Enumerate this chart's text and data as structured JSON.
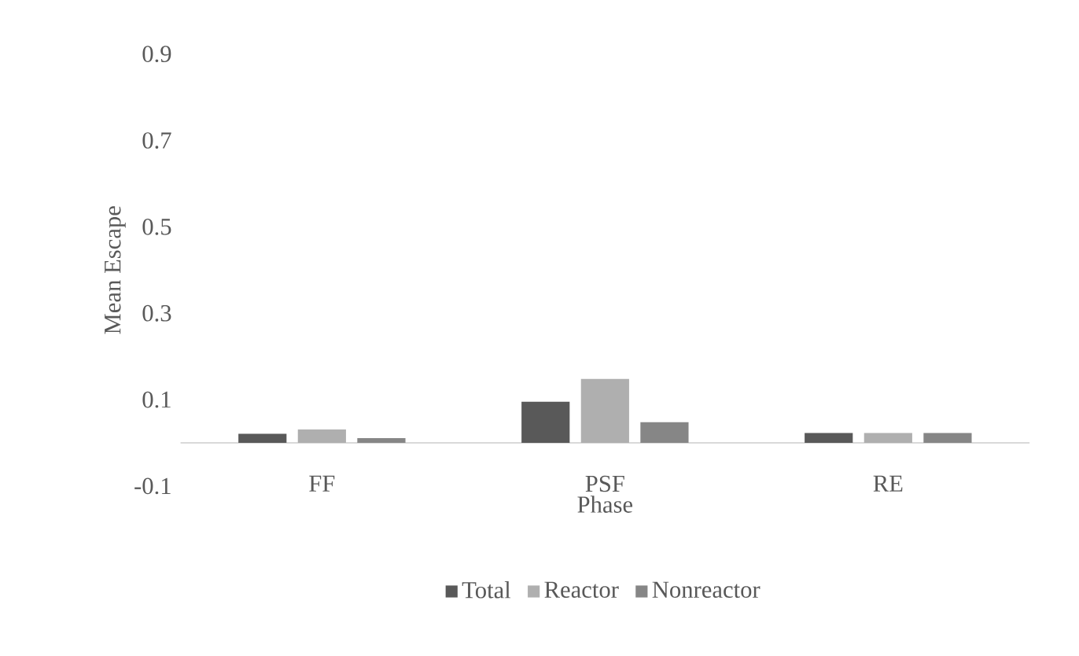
{
  "chart_data": {
    "type": "bar",
    "xlabel": "Phase",
    "ylabel": "Mean Escape",
    "categories": [
      "FF",
      "PSF",
      "RE"
    ],
    "series": [
      {
        "name": "Total",
        "color": "#595959",
        "values": [
          0.021,
          0.095,
          0.023
        ]
      },
      {
        "name": "Reactor",
        "color": "#afafaf",
        "values": [
          0.031,
          0.148,
          0.023
        ]
      },
      {
        "name": "Nonreactor",
        "color": "#868686",
        "values": [
          0.011,
          0.048,
          0.023
        ]
      }
    ],
    "ylim": [
      -0.1,
      0.9
    ],
    "yticks": [
      -0.1,
      0.1,
      0.3,
      0.5,
      0.7,
      0.9
    ],
    "legend": "bottom"
  }
}
